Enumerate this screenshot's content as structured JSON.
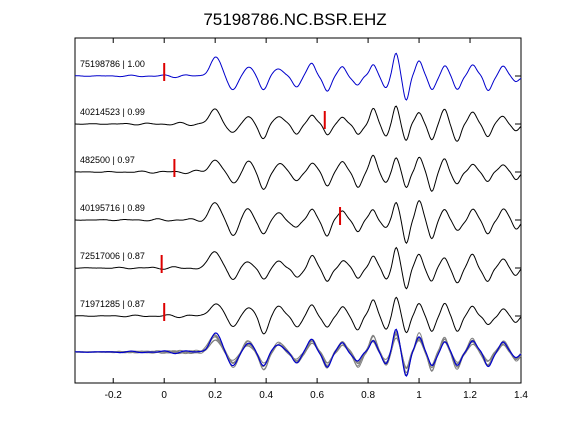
{
  "chart_data": {
    "type": "line",
    "title": "75198786.NC.BSR.EHZ",
    "xlabel": "",
    "ylabel": "",
    "xlim": [
      -0.35,
      1.4
    ],
    "x_ticks": [
      -0.2,
      0,
      0.2,
      0.4,
      0.6,
      0.8,
      1,
      1.2,
      1.4
    ],
    "x_tick_labels": [
      "-0.2",
      "0",
      "0.2",
      "0.4",
      "0.6",
      "0.8",
      "1",
      "1.2",
      "1.4"
    ],
    "grid": false,
    "legend": "none",
    "reference_color": "#0000cc",
    "trace_color": "#000000",
    "stack_color": "#808080",
    "pick_color": "#dd0000",
    "traces": [
      {
        "name": "75198786 | 1.00",
        "label": "75198786 | 1.00",
        "event_id": "75198786",
        "correlation": 1.0,
        "pick_time": 0.0,
        "reference": true
      },
      {
        "name": "40214523 | 0.99",
        "label": "40214523 | 0.99",
        "event_id": "40214523",
        "correlation": 0.99,
        "pick_time": 0.63,
        "reference": false
      },
      {
        "name": "482500 | 0.97",
        "label": "482500 | 0.97",
        "event_id": "482500",
        "correlation": 0.97,
        "pick_time": 0.04,
        "reference": false
      },
      {
        "name": "40195716 | 0.89",
        "label": "40195716 | 0.89",
        "event_id": "40195716",
        "correlation": 0.89,
        "pick_time": 0.69,
        "reference": false
      },
      {
        "name": "72517006 | 0.87",
        "label": "72517006 | 0.87",
        "event_id": "72517006",
        "correlation": 0.87,
        "pick_time": -0.01,
        "reference": false
      },
      {
        "name": "71971285 | 0.87",
        "label": "71971285 | 0.87",
        "event_id": "71971285",
        "correlation": 0.87,
        "pick_time": 0.0,
        "reference": false
      }
    ],
    "overlay_panel": "all traces superimposed"
  }
}
